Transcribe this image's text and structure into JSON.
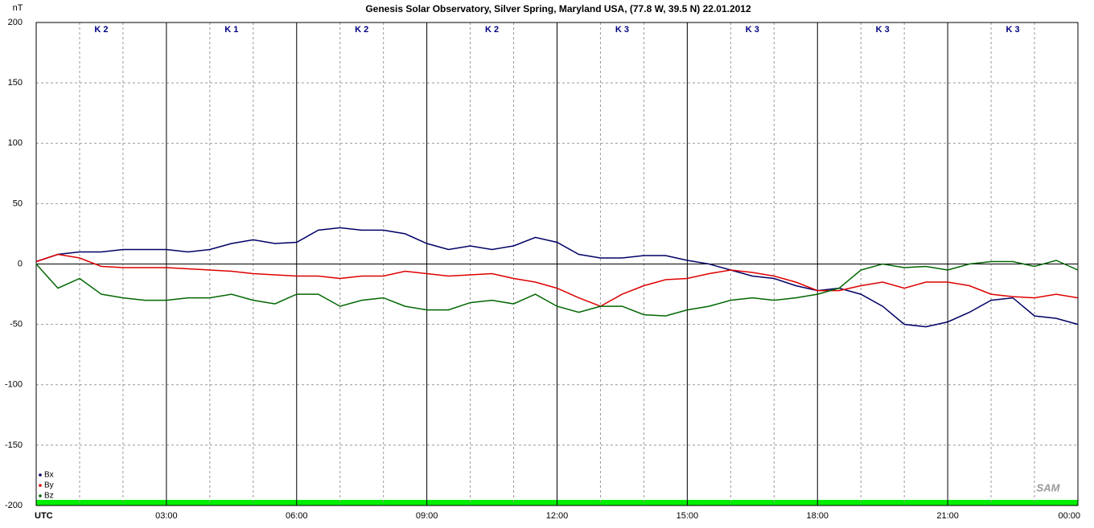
{
  "chart_data": {
    "type": "line",
    "title": "Genesis Solar Observatory, Silver Spring, Maryland USA, (77.8 W, 39.5 N)  22.01.2012",
    "y_label": "nT",
    "logo": "SAM",
    "k_labels": [
      "K 2",
      "K 1",
      "K 2",
      "K 2",
      "K 3",
      "K 3",
      "K 3",
      "K 3"
    ],
    "x": [
      0,
      0.5,
      1,
      1.5,
      2,
      2.5,
      3,
      3.5,
      4,
      4.5,
      5,
      5.5,
      6,
      6.5,
      7,
      7.5,
      8,
      8.5,
      9,
      9.5,
      10,
      10.5,
      11,
      11.5,
      12,
      12.5,
      13,
      13.5,
      14,
      14.5,
      15,
      15.5,
      16,
      16.5,
      17,
      17.5,
      18,
      18.5,
      19,
      19.5,
      20,
      20.5,
      21,
      21.5,
      22,
      22.5,
      23,
      23.5,
      24
    ],
    "series": [
      {
        "name": "Bx",
        "color": "#000066",
        "values": [
          2,
          8,
          10,
          10,
          12,
          12,
          12,
          10,
          12,
          17,
          20,
          17,
          18,
          28,
          30,
          28,
          28,
          25,
          17,
          12,
          15,
          12,
          15,
          22,
          18,
          8,
          5,
          5,
          7,
          7,
          3,
          0,
          -5,
          -10,
          -12,
          -18,
          -22,
          -20,
          -25,
          -35,
          -50,
          -52,
          -48,
          -40,
          -30,
          -28,
          -43,
          -45,
          -50
        ]
      },
      {
        "name": "By",
        "color": "#dd0000",
        "values": [
          2,
          8,
          5,
          -2,
          -3,
          -3,
          -3,
          -4,
          -5,
          -6,
          -8,
          -9,
          -10,
          -10,
          -12,
          -10,
          -10,
          -6,
          -8,
          -10,
          -9,
          -8,
          -12,
          -15,
          -20,
          -28,
          -35,
          -25,
          -18,
          -13,
          -12,
          -8,
          -5,
          -7,
          -10,
          -15,
          -22,
          -22,
          -18,
          -15,
          -20,
          -15,
          -15,
          -18,
          -25,
          -27,
          -28,
          -25,
          -28
        ]
      },
      {
        "name": "Bz",
        "color": "#006600",
        "values": [
          0,
          -20,
          -12,
          -25,
          -28,
          -30,
          -30,
          -28,
          -28,
          -25,
          -30,
          -33,
          -25,
          -25,
          -35,
          -30,
          -28,
          -35,
          -38,
          -38,
          -32,
          -30,
          -33,
          -25,
          -35,
          -40,
          -35,
          -35,
          -42,
          -43,
          -38,
          -35,
          -30,
          -28,
          -30,
          -28,
          -25,
          -20,
          -5,
          0,
          -3,
          -2,
          -5,
          0,
          2,
          2,
          -2,
          3,
          -5
        ]
      }
    ],
    "xlim": [
      0,
      24
    ],
    "xticks": [
      {
        "value": 0,
        "label": "UTC"
      },
      {
        "value": 3,
        "label": "03:00"
      },
      {
        "value": 6,
        "label": "06:00"
      },
      {
        "value": 9,
        "label": "09:00"
      },
      {
        "value": 12,
        "label": "12:00"
      },
      {
        "value": 15,
        "label": "15:00"
      },
      {
        "value": 18,
        "label": "18:00"
      },
      {
        "value": 21,
        "label": "21:00"
      },
      {
        "value": 24,
        "label": "00:00"
      }
    ],
    "xminor": [
      1,
      2,
      4,
      5,
      7,
      8,
      10,
      11,
      13,
      14,
      16,
      17,
      19,
      20,
      22,
      23
    ],
    "ylim": [
      -200,
      200
    ],
    "yticks": [
      200,
      150,
      100,
      50,
      0,
      -50,
      -100,
      -150,
      -200
    ],
    "grid": true
  }
}
